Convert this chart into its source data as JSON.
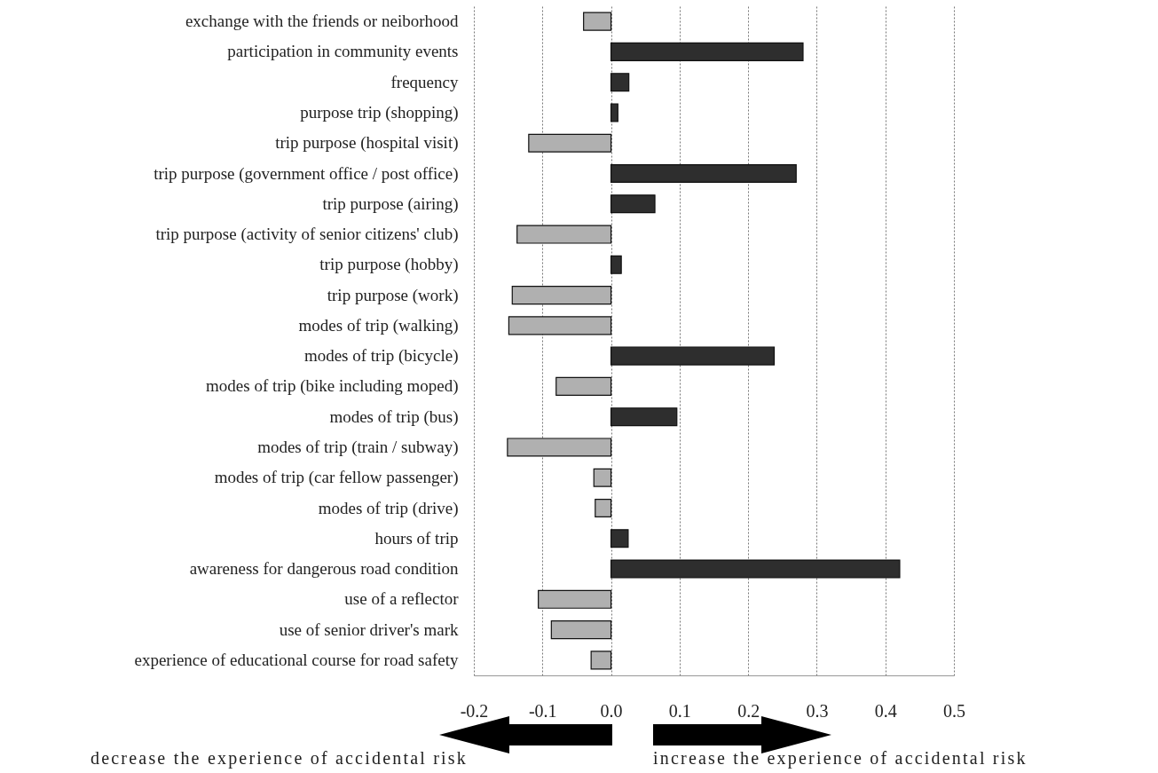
{
  "chart_data": {
    "type": "bar",
    "orientation": "horizontal",
    "categories": [
      "exchange with the friends or neiborhood",
      "participation in community events",
      "frequency",
      "purpose trip (shopping)",
      "trip purpose (hospital visit)",
      "trip purpose (government office / post office)",
      "trip purpose (airing)",
      "trip purpose (activity of senior citizens' club)",
      "trip purpose (hobby)",
      "trip purpose (work)",
      "modes of trip (walking)",
      "modes of trip (bicycle)",
      "modes of trip (bike including moped)",
      "modes of trip (bus)",
      "modes of trip (train / subway)",
      "modes of trip (car fellow passenger)",
      "modes of trip (drive)",
      "hours of trip",
      "awareness for dangerous road condition",
      "use of a reflector",
      "use of senior driver's mark",
      "experience of educational course for road safety"
    ],
    "values": [
      -0.04,
      0.28,
      0.026,
      0.01,
      -0.12,
      0.27,
      0.064,
      -0.137,
      0.015,
      -0.144,
      -0.149,
      0.238,
      -0.08,
      0.096,
      -0.151,
      -0.025,
      -0.023,
      0.025,
      0.421,
      -0.106,
      -0.087,
      -0.029
    ],
    "colors": [
      "#b0b0b0",
      "#2e2e2e",
      "#2e2e2e",
      "#2e2e2e",
      "#b0b0b0",
      "#2e2e2e",
      "#2e2e2e",
      "#b0b0b0",
      "#2e2e2e",
      "#b0b0b0",
      "#b0b0b0",
      "#2e2e2e",
      "#b0b0b0",
      "#2e2e2e",
      "#b0b0b0",
      "#b0b0b0",
      "#b0b0b0",
      "#2e2e2e",
      "#2e2e2e",
      "#b0b0b0",
      "#b0b0b0",
      "#b0b0b0"
    ],
    "xlim": [
      -0.2,
      0.5
    ],
    "xticks": [
      {
        "value": -0.2,
        "label": "-0.2"
      },
      {
        "value": -0.1,
        "label": "-0.1"
      },
      {
        "value": 0,
        "label": "0.0"
      },
      {
        "value": 0.1,
        "label": "0.1"
      },
      {
        "value": 0.2,
        "label": "0.2"
      },
      {
        "value": 0.3,
        "label": "0.3"
      },
      {
        "value": 0.4,
        "label": "0.4"
      },
      {
        "value": 0.5,
        "label": "0.5"
      }
    ],
    "grid": "x",
    "annotations": [
      "decrease the experience of accidental risk",
      "increase the experience of accidental risk"
    ]
  }
}
